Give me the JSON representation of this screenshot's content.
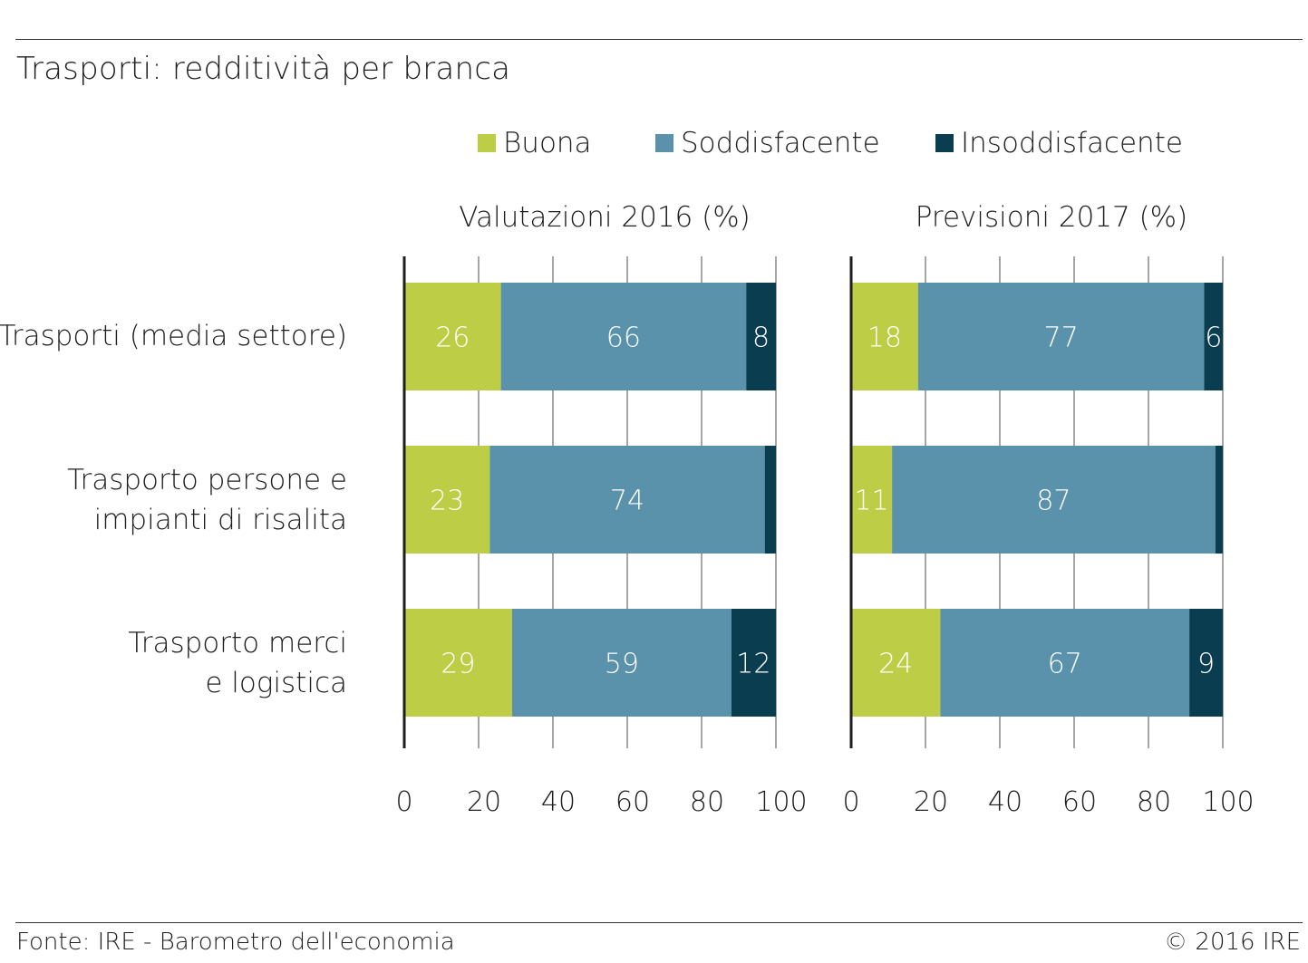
{
  "title": "Trasporti: redditività per branca",
  "footer": {
    "source": "Fonte: IRE - Barometro dell'economia",
    "copyright": "© 2016 IRE"
  },
  "colors": {
    "Buona": "#bdcd46",
    "Soddisfacente": "#5a92ab",
    "Insoddisfacente": "#0b3d50"
  },
  "chart_data": {
    "type": "bar",
    "orientation": "horizontal",
    "stacked": true,
    "legend": {
      "position": "top",
      "entries": [
        "Buona",
        "Soddisfacente",
        "Insoddisfacente"
      ]
    },
    "categories": [
      "Trasporti (media settore)",
      "Trasporto persone e impianti di risalita",
      "Trasporto merci e logistica"
    ],
    "category_lines": [
      [
        "Trasporti (media settore)"
      ],
      [
        "Trasporto persone e",
        "impianti di risalita"
      ],
      [
        "Trasporto merci",
        "e logistica"
      ]
    ],
    "xlim": [
      0,
      100
    ],
    "xticks": [
      0,
      20,
      40,
      60,
      80,
      100
    ],
    "grid": true,
    "panels": [
      {
        "title": "Valutazioni 2016 (%)",
        "series": [
          {
            "name": "Buona",
            "values": [
              26,
              23,
              29
            ],
            "labels": [
              "26",
              "23",
              "29"
            ]
          },
          {
            "name": "Soddisfacente",
            "values": [
              66,
              74,
              59
            ],
            "labels": [
              "66",
              "74",
              "59"
            ]
          },
          {
            "name": "Insoddisfacente",
            "values": [
              8,
              3,
              12
            ],
            "labels": [
              "8",
              "",
              "12"
            ]
          }
        ]
      },
      {
        "title": "Previsioni 2017 (%)",
        "series": [
          {
            "name": "Buona",
            "values": [
              18,
              11,
              24
            ],
            "labels": [
              "18",
              "11",
              "24"
            ]
          },
          {
            "name": "Soddisfacente",
            "values": [
              77,
              87,
              67
            ],
            "labels": [
              "77",
              "87",
              "67"
            ]
          },
          {
            "name": "Insoddisfacente",
            "values": [
              6,
              3,
              9
            ],
            "labels": [
              "6",
              "",
              "9"
            ]
          }
        ]
      }
    ]
  }
}
